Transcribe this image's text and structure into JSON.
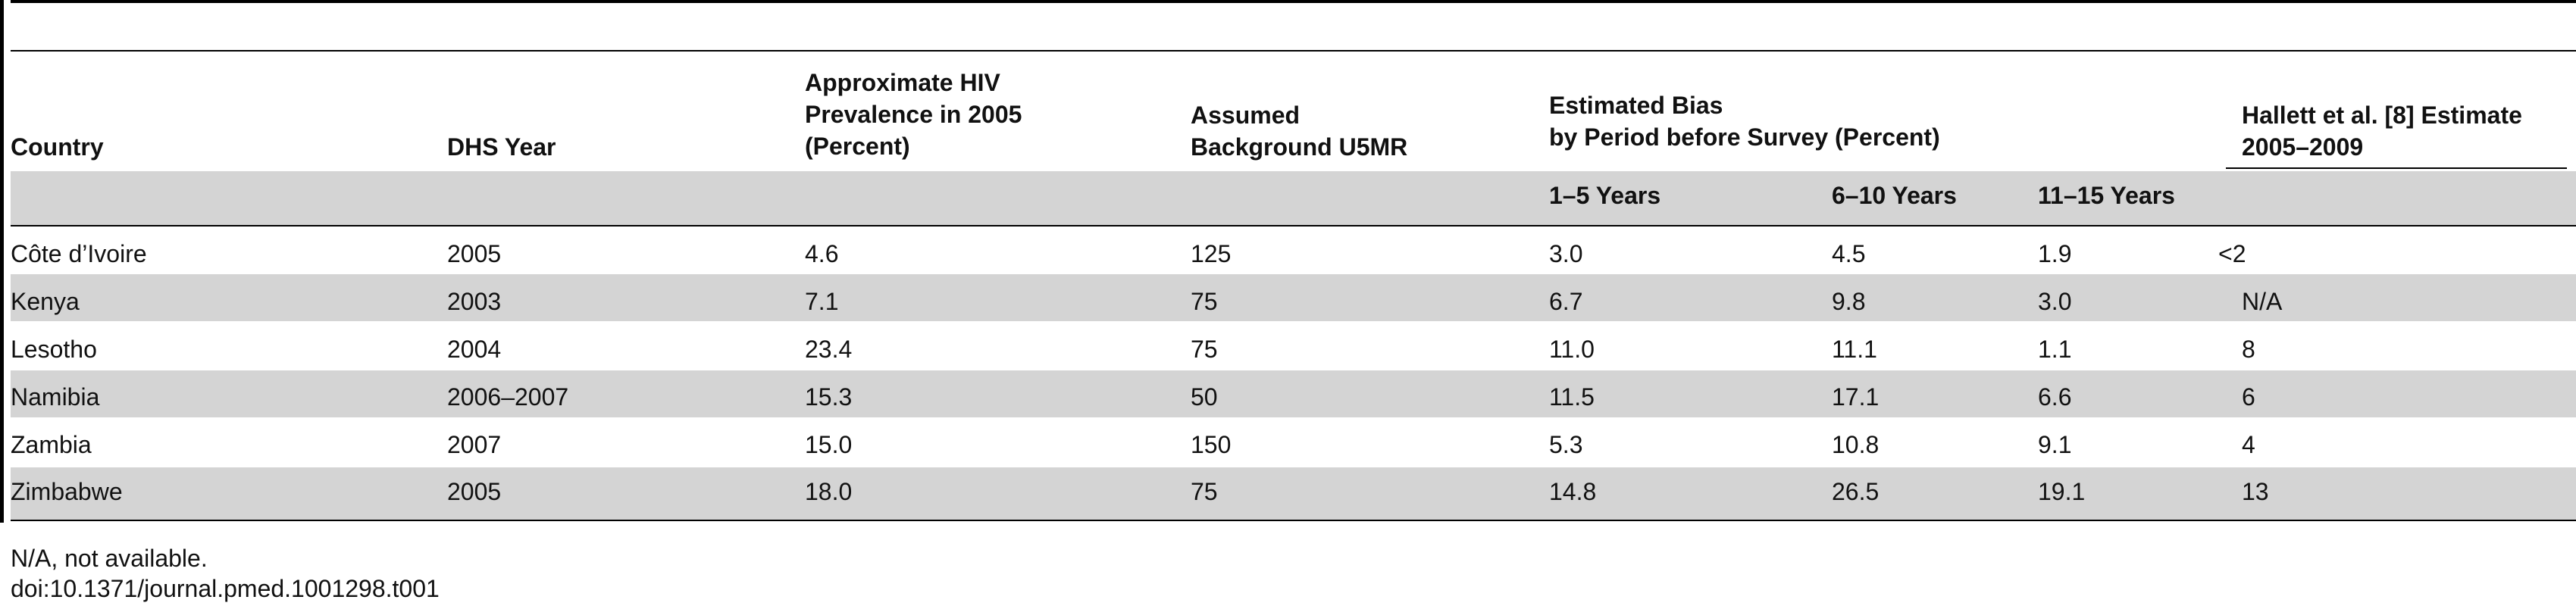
{
  "table": {
    "headers": {
      "country": "Country",
      "dhs_year": "DHS Year",
      "hiv": "Approximate HIV\nPrevalence in 2005\n(Percent)",
      "u5mr": "Assumed\nBackground U5MR",
      "bias": "Estimated Bias\nby Period before Survey (Percent)",
      "hallett": "Hallett et al. [8] Estimate\n2005–2009"
    },
    "subheaders": {
      "p1": "1–5 Years",
      "p2": "6–10 Years",
      "p3": "11–15 Years"
    },
    "rows": [
      {
        "country": "Côte d’Ivoire",
        "year": "2005",
        "hiv": "4.6",
        "u5mr": "125",
        "b1": "3.0",
        "b2": "4.5",
        "b3": "1.9",
        "hallett": "<2"
      },
      {
        "country": "Kenya",
        "year": "2003",
        "hiv": "7.1",
        "u5mr": "75",
        "b1": "6.7",
        "b2": "9.8",
        "b3": "3.0",
        "hallett": "N/A"
      },
      {
        "country": "Lesotho",
        "year": "2004",
        "hiv": "23.4",
        "u5mr": "75",
        "b1": "11.0",
        "b2": "11.1",
        "b3": "1.1",
        "hallett": "8"
      },
      {
        "country": "Namibia",
        "year": "2006–2007",
        "hiv": "15.3",
        "u5mr": "50",
        "b1": "11.5",
        "b2": "17.1",
        "b3": "6.6",
        "hallett": "6"
      },
      {
        "country": "Zambia",
        "year": "2007",
        "hiv": "15.0",
        "u5mr": "150",
        "b1": "5.3",
        "b2": "10.8",
        "b3": "9.1",
        "hallett": "4"
      },
      {
        "country": "Zimbabwe",
        "year": "2005",
        "hiv": "18.0",
        "u5mr": "75",
        "b1": "14.8",
        "b2": "26.5",
        "b3": "19.1",
        "hallett": "13"
      }
    ]
  },
  "footnote": "N/A, not available.",
  "doi": "doi:10.1371/journal.pmed.1001298.t001"
}
